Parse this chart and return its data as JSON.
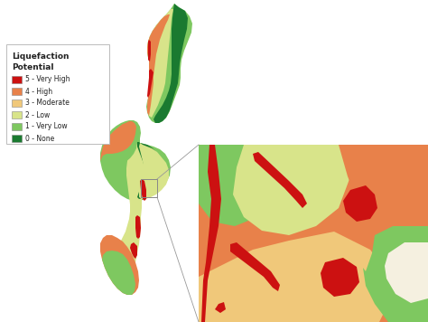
{
  "background_color": "#ffffff",
  "legend_title": "Liquefaction\nPotential",
  "legend_items": [
    {
      "label": "5 - Very High",
      "color": "#cc1111"
    },
    {
      "label": "4 - High",
      "color": "#e8814a"
    },
    {
      "label": "3 - Moderate",
      "color": "#f0c87a"
    },
    {
      "label": "2 - Low",
      "color": "#d8e48a"
    },
    {
      "label": "1 - Very Low",
      "color": "#7ec860"
    },
    {
      "label": "0 - None",
      "color": "#1a7a30"
    }
  ],
  "fig_width": 4.74,
  "fig_height": 3.56,
  "dpi": 100,
  "c_veryhigh": "#cc1111",
  "c_high": "#e8814a",
  "c_moderate": "#f0c87a",
  "c_low": "#d8e48a",
  "c_verylow": "#7ec860",
  "c_none": "#1a7a30"
}
